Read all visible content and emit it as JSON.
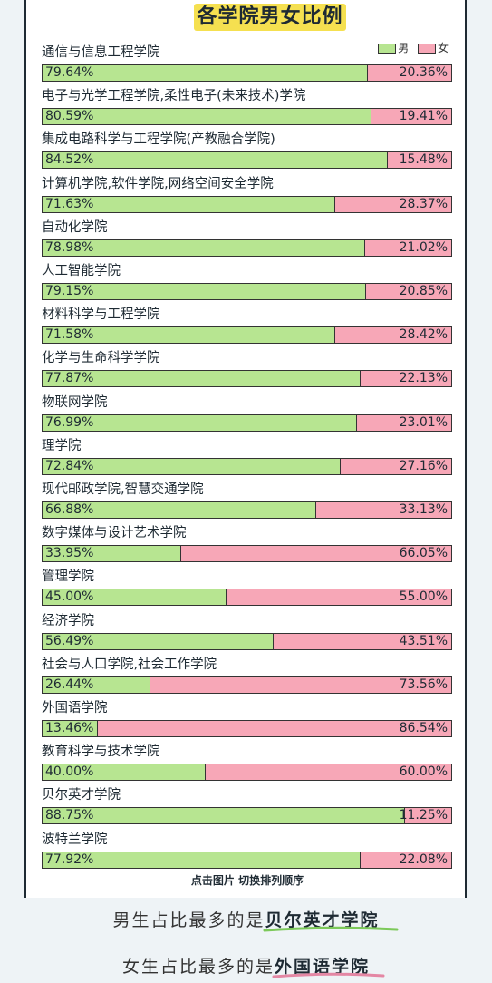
{
  "title": "各学院男女比例",
  "legend": {
    "male": "男",
    "female": "女"
  },
  "colors": {
    "male": "#b7e591",
    "female": "#f7a7b7",
    "title_bg": "#f5e050",
    "underline": "#7cc95a",
    "underline_f": "#e487a4"
  },
  "chart_data": {
    "type": "bar",
    "stacked": true,
    "orientation": "horizontal",
    "categories": [
      "通信与信息工程学院",
      "电子与光学工程学院,柔性电子(未来技术)学院",
      "集成电路科学与工程学院(产教融合学院)",
      "计算机学院,软件学院,网络空间安全学院",
      "自动化学院",
      "人工智能学院",
      "材料科学与工程学院",
      "化学与生命科学学院",
      "物联网学院",
      "理学院",
      "现代邮政学院,智慧交通学院",
      "数字媒体与设计艺术学院",
      "管理学院",
      "经济学院",
      "社会与人口学院,社会工作学院",
      "外国语学院",
      "教育科学与技术学院",
      "贝尔英才学院",
      "波特兰学院"
    ],
    "series": [
      {
        "name": "男",
        "values": [
          79.64,
          80.59,
          84.52,
          71.63,
          78.98,
          79.15,
          71.58,
          77.87,
          76.99,
          72.84,
          66.88,
          33.95,
          45.0,
          56.49,
          26.44,
          13.46,
          40.0,
          88.75,
          77.92
        ]
      },
      {
        "name": "女",
        "values": [
          20.36,
          19.41,
          15.48,
          28.37,
          21.02,
          20.85,
          28.42,
          22.13,
          23.01,
          27.16,
          33.13,
          66.05,
          55.0,
          43.51,
          73.56,
          86.54,
          60.0,
          11.25,
          22.08
        ]
      }
    ],
    "labels_male": [
      "79.64%",
      "80.59%",
      "84.52%",
      "71.63%",
      "78.98%",
      "79.15%",
      "71.58%",
      "77.87%",
      "76.99%",
      "72.84%",
      "66.88%",
      "33.95%",
      "45.00%",
      "56.49%",
      "26.44%",
      "13.46%",
      "40.00%",
      "88.75%",
      "77.92%"
    ],
    "labels_female": [
      "20.36%",
      "19.41%",
      "15.48%",
      "28.37%",
      "21.02%",
      "20.85%",
      "28.42%",
      "22.13%",
      "23.01%",
      "27.16%",
      "33.13%",
      "66.05%",
      "55.00%",
      "43.51%",
      "73.56%",
      "86.54%",
      "60.00%",
      "11.25%",
      "22.08%"
    ],
    "xlim": [
      0,
      100
    ],
    "legend_position": "top-right"
  },
  "hint": "点击图片 切换排列顺序",
  "summary_male": {
    "prefix": "男生占比最多的是",
    "highlight": "贝尔英才学院"
  },
  "summary_female": {
    "prefix": "女生占比最多的是",
    "highlight": "外国语学院"
  }
}
